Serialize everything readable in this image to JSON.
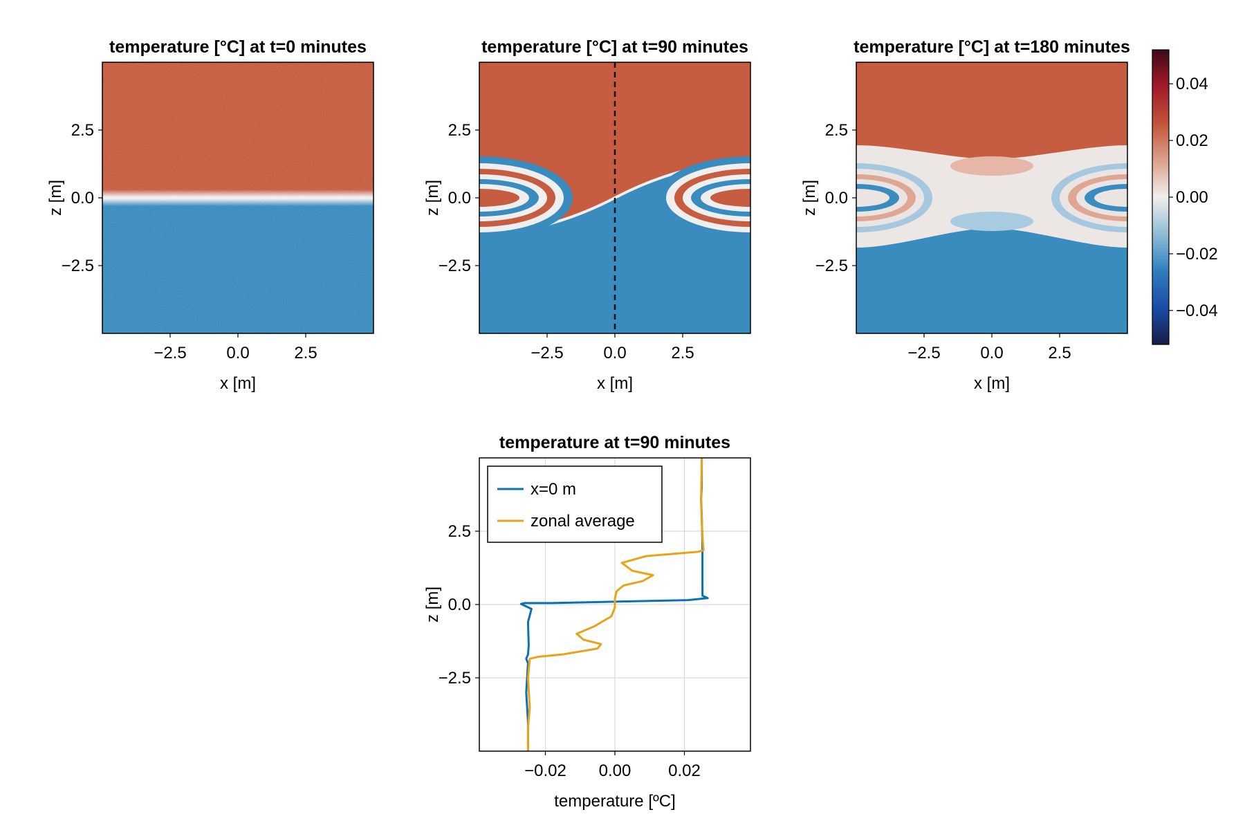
{
  "figure": {
    "colorbar": {
      "range": [
        -0.052,
        0.052
      ],
      "ticks": [
        0.04,
        0.02,
        0.0,
        -0.02,
        -0.04
      ],
      "tick_labels": [
        "0.04",
        "0.02",
        "0.00",
        "−0.02",
        "−0.04"
      ],
      "colormap": "balance"
    },
    "colors": {
      "warm": "#c65d40",
      "cold": "#3a8cbf",
      "neutral": "#f0efef",
      "line_x0": "#0a72b2",
      "line_zonal": "#e8a318"
    }
  },
  "chart_data": [
    {
      "type": "heatmap",
      "title": "temperature [°C] at t=0 minutes",
      "xlabel": "x [m]",
      "ylabel": "z [m]",
      "xlim": [
        -5,
        5
      ],
      "ylim": [
        -5,
        5
      ],
      "x_ticks": [
        "−2.5",
        "0.0",
        "2.5"
      ],
      "y_ticks": [
        "2.5",
        "0.0",
        "−2.5"
      ],
      "description_values": {
        "upper_temperature": 0.025,
        "lower_temperature": -0.025,
        "interface_z": 0.0
      }
    },
    {
      "type": "heatmap",
      "title": "temperature [°C] at t=90 minutes",
      "xlabel": "x [m]",
      "ylabel": "z [m]",
      "xlim": [
        -5,
        5
      ],
      "ylim": [
        -5,
        5
      ],
      "x_ticks": [
        "−2.5",
        "0.0",
        "2.5"
      ],
      "y_ticks": [
        "2.5",
        "0.0",
        "−2.5"
      ],
      "vertical_line_x": 0.0
    },
    {
      "type": "heatmap",
      "title": "temperature [°C] at t=180 minutes",
      "xlabel": "x [m]",
      "ylabel": "z [m]",
      "xlim": [
        -5,
        5
      ],
      "ylim": [
        -5,
        5
      ],
      "x_ticks": [
        "−2.5",
        "0.0",
        "2.5"
      ],
      "y_ticks": [
        "2.5",
        "0.0",
        "−2.5"
      ]
    },
    {
      "type": "line",
      "title": "temperature at t=90 minutes",
      "xlabel": "temperature [ºC]",
      "ylabel": "z [m]",
      "xlim": [
        -0.039,
        0.039
      ],
      "ylim": [
        -5,
        5
      ],
      "x_ticks": [
        "−0.02",
        "0.00",
        "0.02"
      ],
      "y_ticks": [
        "2.5",
        "0.0",
        "−2.5"
      ],
      "grid": true,
      "legend_position": "top-left",
      "series": [
        {
          "name": "x=0 m",
          "points": [
            [
              0.025,
              5.0
            ],
            [
              0.025,
              4.0
            ],
            [
              0.0248,
              3.6
            ],
            [
              0.025,
              3.0
            ],
            [
              0.0252,
              2.0
            ],
            [
              0.0252,
              1.0
            ],
            [
              0.0252,
              0.3
            ],
            [
              0.0267,
              0.22
            ],
            [
              0.021,
              0.15
            ],
            [
              -0.018,
              0.05
            ],
            [
              -0.026,
              0.05
            ],
            [
              -0.027,
              0.02
            ],
            [
              -0.024,
              -0.15
            ],
            [
              -0.025,
              -0.6
            ],
            [
              -0.0248,
              -1.4
            ],
            [
              -0.025,
              -1.7
            ],
            [
              -0.0255,
              -1.85
            ],
            [
              -0.025,
              -2.0
            ],
            [
              -0.0255,
              -3.0
            ],
            [
              -0.025,
              -4.0
            ],
            [
              -0.025,
              -5.0
            ]
          ]
        },
        {
          "name": "zonal average",
          "points": [
            [
              0.025,
              5.0
            ],
            [
              0.0248,
              3.5
            ],
            [
              0.0252,
              2.3
            ],
            [
              0.0255,
              1.85
            ],
            [
              0.024,
              1.8
            ],
            [
              0.009,
              1.65
            ],
            [
              0.002,
              1.42
            ],
            [
              0.005,
              1.15
            ],
            [
              0.011,
              1.0
            ],
            [
              0.008,
              0.8
            ],
            [
              0.0025,
              0.65
            ],
            [
              0.0005,
              0.45
            ],
            [
              0.0,
              0.2
            ],
            [
              0.0,
              -0.1
            ],
            [
              -0.001,
              -0.4
            ],
            [
              -0.006,
              -0.75
            ],
            [
              -0.011,
              -1.0
            ],
            [
              -0.009,
              -1.2
            ],
            [
              -0.004,
              -1.35
            ],
            [
              -0.005,
              -1.5
            ],
            [
              -0.015,
              -1.7
            ],
            [
              -0.022,
              -1.78
            ],
            [
              -0.0245,
              -1.85
            ],
            [
              -0.025,
              -2.5
            ],
            [
              -0.0245,
              -3.5
            ],
            [
              -0.025,
              -4.2
            ],
            [
              -0.025,
              -5.0
            ]
          ]
        }
      ]
    }
  ]
}
